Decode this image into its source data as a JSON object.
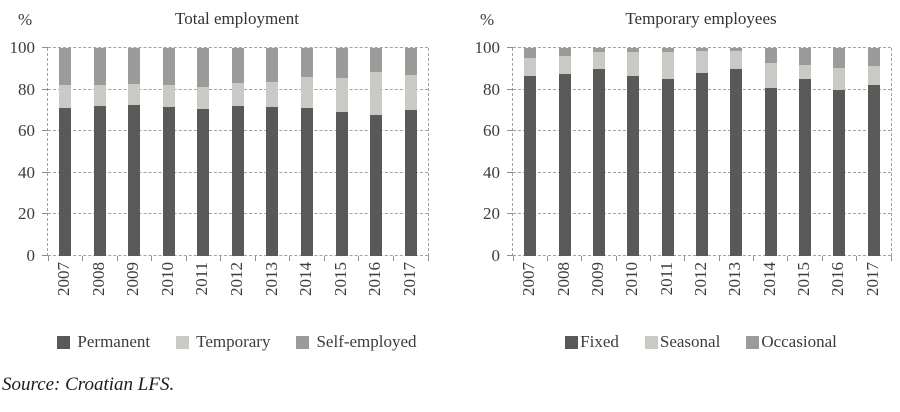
{
  "figure": {
    "source_note": "Source: Croatian LFS."
  },
  "colors": {
    "dark": "#595957",
    "light": "#cac9c6",
    "medium": "#9b9b99",
    "grid": "#a3a3a3",
    "text": "#3c3c3c"
  },
  "chart_data": [
    {
      "type": "bar",
      "subtype": "stacked-100-percent",
      "title": "Total employment",
      "ylabel": "%",
      "ylim": [
        0,
        100
      ],
      "yticks": [
        100,
        80,
        60,
        40,
        20,
        0
      ],
      "grid": "dashed-horizontal",
      "legend_position": "bottom",
      "legend_swatch_gap": true,
      "categories": [
        "2007",
        "2008",
        "2009",
        "2010",
        "2011",
        "2012",
        "2013",
        "2014",
        "2015",
        "2016",
        "2017"
      ],
      "series": [
        {
          "name": "Permanent",
          "color": "dark",
          "values": [
            71,
            72,
            72.5,
            71.5,
            70.5,
            72,
            71.5,
            71,
            69,
            68,
            70
          ]
        },
        {
          "name": "Temporary",
          "color": "light",
          "values": [
            11,
            10,
            10,
            10.5,
            11,
            11,
            12,
            15,
            16.5,
            20.5,
            17
          ]
        },
        {
          "name": "Self-employed",
          "color": "medium",
          "values": [
            18,
            18,
            17.5,
            18,
            18.5,
            17,
            16.5,
            14,
            14.5,
            11.5,
            13
          ]
        }
      ]
    },
    {
      "type": "bar",
      "subtype": "stacked-100-percent",
      "title": "Temporary employees",
      "ylabel": "%",
      "ylim": [
        0,
        100
      ],
      "yticks": [
        100,
        80,
        60,
        40,
        20,
        0
      ],
      "grid": "dashed-horizontal",
      "legend_position": "bottom",
      "legend_swatch_gap": false,
      "categories": [
        "2007",
        "2008",
        "2009",
        "2010",
        "2011",
        "2012",
        "2013",
        "2014",
        "2015",
        "2016",
        "2017"
      ],
      "series": [
        {
          "name": "Fixed",
          "color": "dark",
          "values": [
            86.5,
            87.5,
            90,
            86.5,
            85,
            88,
            90,
            81,
            85,
            80,
            82
          ]
        },
        {
          "name": "Seasonal",
          "color": "light",
          "values": [
            8.5,
            8.5,
            8,
            11.5,
            13,
            10.5,
            8.5,
            12,
            7,
            10.5,
            9.5
          ]
        },
        {
          "name": "Occasional",
          "color": "medium",
          "values": [
            5,
            4,
            2,
            2,
            2,
            1.5,
            1.5,
            7,
            8,
            9.5,
            8.5
          ]
        }
      ]
    }
  ]
}
